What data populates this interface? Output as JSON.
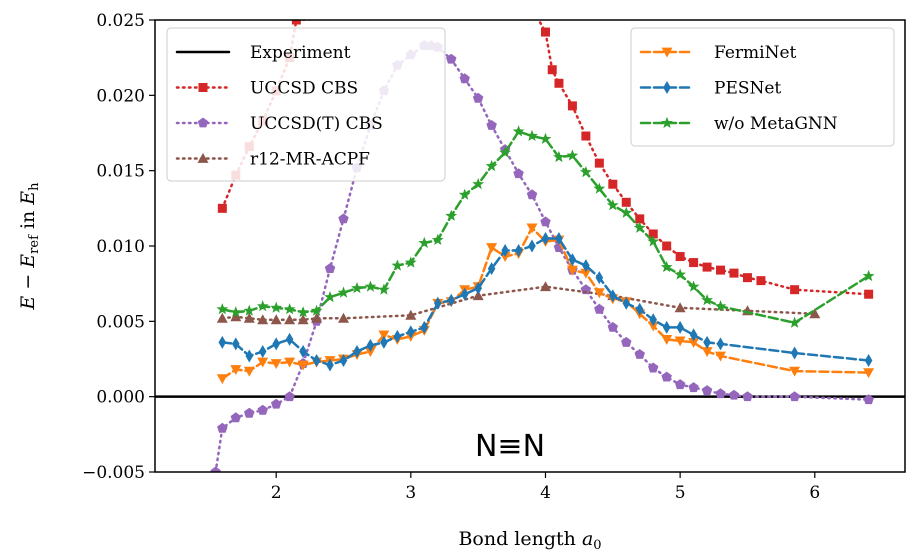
{
  "chart_data": {
    "type": "line",
    "xlabel": "Bond length a0",
    "xlabel_main": "Bond length ",
    "xlabel_sym": "a",
    "xlabel_sub": "0",
    "ylabel": "E − E_ref in E_h",
    "ylabel_parts": {
      "E1": "E",
      "minus": " − ",
      "E2": "E",
      "ref": "ref",
      "in": " in ",
      "E3": "E",
      "h": "h"
    },
    "xlim": [
      1.1,
      6.67
    ],
    "ylim": [
      -0.005,
      0.025
    ],
    "xticks": [
      2,
      3,
      4,
      5,
      6
    ],
    "xtick_labels": [
      "2",
      "3",
      "4",
      "5",
      "6"
    ],
    "yticks": [
      -0.005,
      0.0,
      0.005,
      0.01,
      0.015,
      0.02,
      0.025
    ],
    "ytick_labels": [
      "−0.005",
      "0.000",
      "0.005",
      "0.010",
      "0.015",
      "0.020",
      "0.025"
    ],
    "annotation": "N≡N",
    "reference_line": {
      "name": "Experiment",
      "y": 0.0,
      "color": "#000000"
    },
    "series": [
      {
        "name": "UCCSD CBS",
        "color": "#d62728",
        "marker": "square",
        "linestyle": "dotted",
        "x": [
          1.6,
          1.7,
          1.8,
          1.9,
          2.0,
          2.1,
          2.15,
          3.9,
          4.0,
          4.05,
          4.1,
          4.2,
          4.3,
          4.4,
          4.5,
          4.6,
          4.7,
          4.8,
          4.9,
          5.0,
          5.1,
          5.2,
          5.3,
          5.4,
          5.5,
          5.6,
          5.85,
          6.4
        ],
        "y": [
          0.0125,
          0.0147,
          0.0166,
          0.0183,
          0.0203,
          0.0225,
          0.025,
          0.0258,
          0.0242,
          0.0217,
          0.0208,
          0.0193,
          0.0173,
          0.0155,
          0.0141,
          0.0129,
          0.0118,
          0.0108,
          0.01,
          0.0093,
          0.0089,
          0.0086,
          0.0084,
          0.0082,
          0.0079,
          0.0077,
          0.0071,
          0.0068
        ]
      },
      {
        "name": "UCCSD(T) CBS",
        "color": "#9467bd",
        "marker": "pentagon",
        "linestyle": "dotted",
        "x": [
          1.55,
          1.6,
          1.7,
          1.8,
          1.9,
          2.0,
          2.1,
          2.2,
          2.3,
          2.4,
          2.5,
          2.6,
          2.7,
          2.8,
          2.9,
          3.0,
          3.1,
          3.15,
          3.2,
          3.3,
          3.4,
          3.5,
          3.6,
          3.7,
          3.8,
          3.9,
          4.0,
          4.1,
          4.2,
          4.3,
          4.4,
          4.5,
          4.6,
          4.7,
          4.8,
          4.9,
          5.0,
          5.1,
          5.2,
          5.3,
          5.4,
          5.5,
          5.85,
          6.4
        ],
        "y": [
          -0.005,
          -0.0021,
          -0.0014,
          -0.0011,
          -0.0009,
          -0.0005,
          0.0,
          0.0022,
          0.005,
          0.0085,
          0.0118,
          0.0152,
          0.018,
          0.0203,
          0.022,
          0.0227,
          0.0233,
          0.0233,
          0.0232,
          0.0224,
          0.0211,
          0.0198,
          0.018,
          0.0164,
          0.0148,
          0.0134,
          0.0116,
          0.0099,
          0.0084,
          0.0071,
          0.0058,
          0.0046,
          0.0036,
          0.0028,
          0.0019,
          0.0013,
          0.0008,
          0.0006,
          0.0004,
          0.0002,
          0.0001,
          0.0,
          0.0,
          -0.0002
        ]
      },
      {
        "name": "r12-MR-ACPF",
        "color": "#8c564b",
        "marker": "triangle-up",
        "linestyle": "dotted",
        "x": [
          1.6,
          1.7,
          1.8,
          1.9,
          2.0,
          2.1,
          2.2,
          2.3,
          2.5,
          3.0,
          3.5,
          4.0,
          4.5,
          5.0,
          5.5,
          6.0
        ],
        "y": [
          0.0052,
          0.0053,
          0.0052,
          0.0051,
          0.0051,
          0.0051,
          0.0051,
          0.0052,
          0.0052,
          0.0054,
          0.0067,
          0.0073,
          0.0067,
          0.0059,
          0.0057,
          0.0055
        ]
      },
      {
        "name": "FermiNet",
        "color": "#ff7f0e",
        "marker": "triangle-down",
        "linestyle": "dashed",
        "x": [
          1.6,
          1.7,
          1.8,
          1.9,
          2.0,
          2.1,
          2.2,
          2.3,
          2.4,
          2.5,
          2.6,
          2.7,
          2.8,
          2.9,
          3.0,
          3.1,
          3.2,
          3.3,
          3.4,
          3.5,
          3.6,
          3.7,
          3.8,
          3.9,
          4.0,
          4.1,
          4.2,
          4.3,
          4.4,
          4.5,
          4.6,
          4.7,
          4.8,
          4.9,
          5.0,
          5.1,
          5.2,
          5.3,
          5.85,
          6.4
        ],
        "y": [
          0.0012,
          0.0018,
          0.0017,
          0.0023,
          0.0022,
          0.0023,
          0.0021,
          0.0023,
          0.0024,
          0.0025,
          0.0028,
          0.003,
          0.0041,
          0.0038,
          0.004,
          0.0044,
          0.0062,
          0.0063,
          0.0071,
          0.0073,
          0.0099,
          0.0093,
          0.0095,
          0.0112,
          0.0103,
          0.0104,
          0.0084,
          0.0082,
          0.0069,
          0.0065,
          0.0063,
          0.0055,
          0.0047,
          0.0038,
          0.0037,
          0.0036,
          0.003,
          0.0027,
          0.0017,
          0.0016
        ]
      },
      {
        "name": "PESNet",
        "color": "#1f77b4",
        "marker": "thin-diamond",
        "linestyle": "dashed",
        "x": [
          1.6,
          1.7,
          1.8,
          1.9,
          2.0,
          2.1,
          2.2,
          2.3,
          2.4,
          2.5,
          2.6,
          2.7,
          2.8,
          2.9,
          3.0,
          3.1,
          3.2,
          3.3,
          3.4,
          3.5,
          3.6,
          3.7,
          3.8,
          3.9,
          4.0,
          4.1,
          4.2,
          4.3,
          4.4,
          4.5,
          4.6,
          4.7,
          4.8,
          4.9,
          5.0,
          5.1,
          5.2,
          5.3,
          5.85,
          6.4
        ],
        "y": [
          0.0036,
          0.0035,
          0.0027,
          0.003,
          0.0035,
          0.0038,
          0.003,
          0.0024,
          0.0021,
          0.0024,
          0.003,
          0.0034,
          0.0036,
          0.004,
          0.0043,
          0.0046,
          0.0062,
          0.0064,
          0.0068,
          0.0072,
          0.0085,
          0.0097,
          0.0097,
          0.01,
          0.0105,
          0.0105,
          0.0091,
          0.0087,
          0.0079,
          0.0067,
          0.0062,
          0.0058,
          0.0051,
          0.0046,
          0.0046,
          0.0041,
          0.0036,
          0.0035,
          0.0029,
          0.0024
        ]
      },
      {
        "name": "w/o MetaGNN",
        "color": "#2ca02c",
        "marker": "star",
        "linestyle": "dashed",
        "x": [
          1.6,
          1.7,
          1.8,
          1.9,
          2.0,
          2.1,
          2.2,
          2.3,
          2.4,
          2.5,
          2.6,
          2.7,
          2.8,
          2.9,
          3.0,
          3.1,
          3.2,
          3.3,
          3.4,
          3.5,
          3.6,
          3.7,
          3.8,
          3.9,
          4.0,
          4.1,
          4.2,
          4.3,
          4.4,
          4.5,
          4.6,
          4.7,
          4.8,
          4.9,
          5.0,
          5.1,
          5.2,
          5.3,
          5.85,
          6.4
        ],
        "y": [
          0.0058,
          0.0056,
          0.0057,
          0.006,
          0.0059,
          0.0058,
          0.0056,
          0.0057,
          0.0066,
          0.0069,
          0.0072,
          0.0073,
          0.0071,
          0.0087,
          0.0089,
          0.0102,
          0.0104,
          0.012,
          0.0134,
          0.0141,
          0.0153,
          0.0162,
          0.0176,
          0.0173,
          0.0171,
          0.0159,
          0.016,
          0.0149,
          0.0138,
          0.0127,
          0.0122,
          0.0112,
          0.0103,
          0.0086,
          0.0081,
          0.0073,
          0.0064,
          0.006,
          0.0049,
          0.008
        ]
      }
    ],
    "legends": [
      {
        "placement": "top-left",
        "entries": [
          "Experiment",
          "UCCSD CBS",
          "UCCSD(T) CBS",
          "r12-MR-ACPF"
        ]
      },
      {
        "placement": "top-right",
        "entries": [
          "FermiNet",
          "PESNet",
          "w/o MetaGNN"
        ]
      }
    ]
  }
}
